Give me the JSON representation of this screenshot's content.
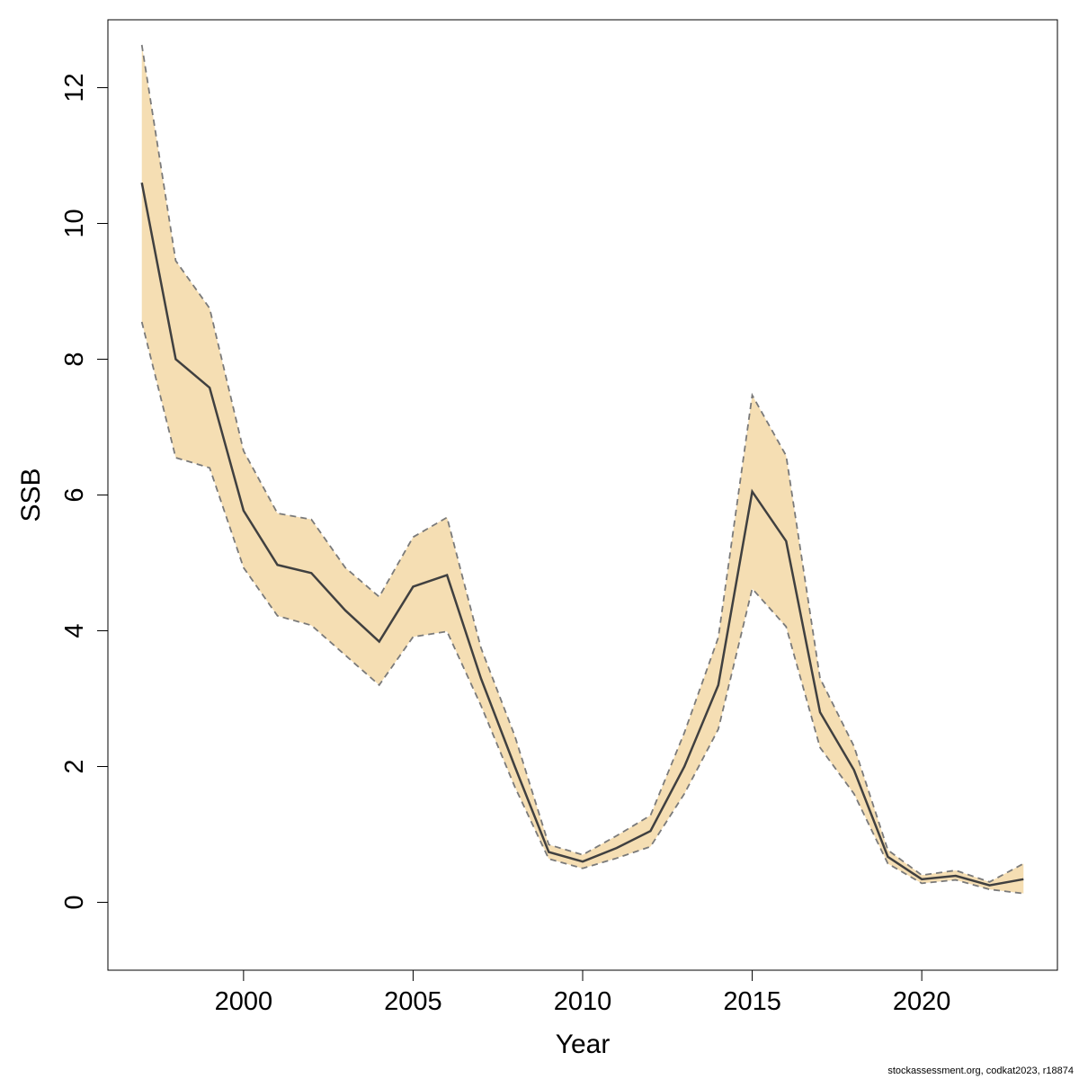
{
  "chart_data": {
    "type": "line",
    "title": "",
    "xlabel": "Year",
    "ylabel": "SSB",
    "xlim": [
      1996,
      2024
    ],
    "ylim": [
      -1,
      13
    ],
    "x_ticks": [
      2000,
      2005,
      2010,
      2015,
      2020
    ],
    "y_ticks": [
      0,
      2,
      4,
      6,
      8,
      10,
      12
    ],
    "grid": false,
    "legend": "none",
    "colors": {
      "band": "#f5deb3",
      "line": "#404040",
      "bound": "#7a7a7a"
    },
    "x": [
      1997,
      1998,
      1999,
      2000,
      2001,
      2002,
      2003,
      2004,
      2005,
      2006,
      2007,
      2008,
      2009,
      2010,
      2011,
      2012,
      2013,
      2014,
      2015,
      2016,
      2017,
      2018,
      2019,
      2020,
      2021,
      2022,
      2023
    ],
    "series": [
      {
        "values": [
          10.6,
          8.0,
          7.58,
          5.77,
          4.97,
          4.85,
          4.3,
          3.84,
          4.65,
          4.82,
          3.3,
          2.0,
          0.74,
          0.6,
          0.8,
          1.05,
          2.0,
          3.2,
          6.05,
          5.32,
          2.8,
          1.95,
          0.67,
          0.34,
          0.39,
          0.25,
          0.34
        ]
      },
      {
        "role": "upper",
        "values": [
          12.63,
          9.45,
          8.75,
          6.65,
          5.73,
          5.64,
          4.93,
          4.5,
          5.38,
          5.67,
          3.75,
          2.45,
          0.85,
          0.7,
          0.98,
          1.28,
          2.5,
          3.9,
          7.47,
          6.58,
          3.3,
          2.3,
          0.77,
          0.4,
          0.47,
          0.3,
          0.57
        ]
      },
      {
        "role": "lower",
        "values": [
          8.55,
          6.55,
          6.4,
          4.93,
          4.22,
          4.08,
          3.64,
          3.2,
          3.91,
          3.99,
          2.9,
          1.7,
          0.64,
          0.5,
          0.65,
          0.82,
          1.6,
          2.55,
          4.62,
          4.06,
          2.28,
          1.6,
          0.57,
          0.28,
          0.33,
          0.19,
          0.13
        ]
      }
    ]
  },
  "footer": "stockassessment.org, codkat2023, r18874"
}
